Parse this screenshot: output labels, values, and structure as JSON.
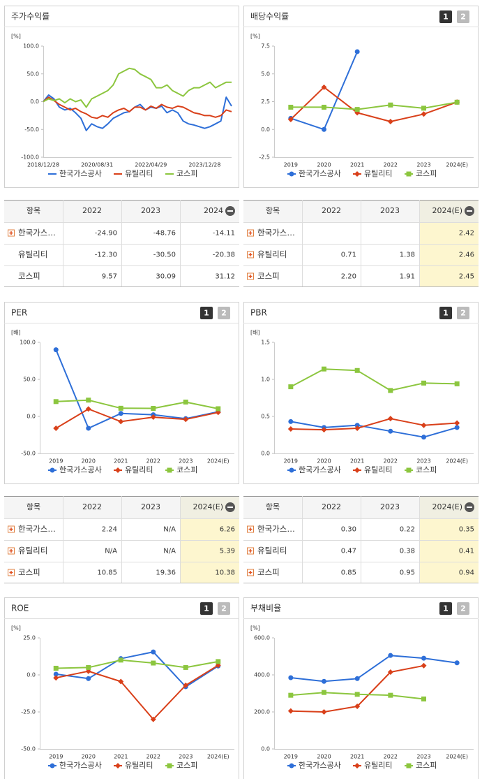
{
  "chart_data": [
    {
      "type": "line",
      "title": "주가수익률",
      "y_unit": "[%]",
      "categories": [
        "2018/12/28",
        null,
        null,
        null,
        null,
        null,
        null,
        null,
        null,
        null,
        "2020/08/31",
        null,
        null,
        null,
        null,
        null,
        null,
        null,
        null,
        null,
        "2022/04/29",
        null,
        null,
        null,
        null,
        null,
        null,
        null,
        null,
        null,
        "2023/12/28",
        null,
        null,
        null,
        null,
        null
      ],
      "series": [
        {
          "name": "한국가스공사",
          "color": "#2e6fd8",
          "values": [
            0,
            12,
            5,
            -10,
            -15,
            -12,
            -20,
            -30,
            -52,
            -40,
            -45,
            -48,
            -40,
            -30,
            -25,
            -20,
            -18,
            -10,
            -5,
            -15,
            -10,
            -12,
            -8,
            -20,
            -15,
            -20,
            -35,
            -40,
            -42,
            -45,
            -48,
            -45,
            -40,
            -35,
            8,
            -8
          ]
        },
        {
          "name": "유틸리티",
          "color": "#d9401a",
          "values": [
            0,
            8,
            2,
            -5,
            -10,
            -15,
            -12,
            -18,
            -22,
            -28,
            -30,
            -25,
            -28,
            -20,
            -15,
            -12,
            -18,
            -10,
            -10,
            -15,
            -8,
            -12,
            -5,
            -10,
            -12,
            -8,
            -10,
            -15,
            -20,
            -22,
            -25,
            -25,
            -28,
            -25,
            -15,
            -18
          ]
        },
        {
          "name": "코스피",
          "color": "#8cc63f",
          "values": [
            0,
            5,
            2,
            5,
            -2,
            5,
            0,
            3,
            -10,
            5,
            10,
            15,
            20,
            30,
            50,
            55,
            60,
            58,
            50,
            45,
            40,
            25,
            25,
            30,
            20,
            15,
            10,
            20,
            25,
            25,
            30,
            35,
            25,
            30,
            35,
            35
          ]
        }
      ],
      "ylim": [
        -100,
        100
      ],
      "yticks": [
        {
          "value": 100,
          "label": "100.0"
        },
        {
          "value": 50,
          "label": "50.0"
        },
        {
          "value": 0,
          "label": "0.0"
        },
        {
          "value": -50,
          "label": "-50.0"
        },
        {
          "value": -100,
          "label": "-100.0"
        }
      ]
    },
    {
      "type": "line",
      "title": "배당수익률",
      "tabs": [
        "1",
        "2"
      ],
      "y_unit": "[%]",
      "categories": [
        "2019",
        "2020",
        "2021",
        "2022",
        "2023",
        "2024(E)"
      ],
      "series": [
        {
          "name": "한국가스공사",
          "color": "#2e6fd8",
          "marker": "circle",
          "values": [
            1.0,
            0.0,
            7.0,
            null,
            null,
            null
          ]
        },
        {
          "name": "유틸리티",
          "color": "#d9401a",
          "marker": "diamond",
          "values": [
            0.9,
            3.8,
            1.5,
            0.71,
            1.38,
            2.46
          ]
        },
        {
          "name": "코스피",
          "color": "#8cc63f",
          "marker": "square",
          "values": [
            2.0,
            2.0,
            1.8,
            2.2,
            1.91,
            2.45
          ]
        }
      ],
      "ylim": [
        -2.5,
        7.5
      ],
      "yticks": [
        7.5,
        {
          "value": 5,
          "label": "5.0"
        },
        2.5,
        {
          "value": 0,
          "label": "0.0"
        },
        -2.5
      ]
    },
    {
      "type": "line",
      "title": "PER",
      "tabs": [
        "1",
        "2"
      ],
      "y_unit": "[배]",
      "categories": [
        "2019",
        "2020",
        "2021",
        "2022",
        "2023",
        "2024(E)"
      ],
      "series": [
        {
          "name": "한국가스공사",
          "color": "#2e6fd8",
          "marker": "circle",
          "values": [
            90,
            -16,
            4,
            2.24,
            -3,
            6.26
          ]
        },
        {
          "name": "유틸리티",
          "color": "#d9401a",
          "marker": "diamond",
          "values": [
            -16,
            10,
            -7,
            -1,
            -4,
            5.39
          ]
        },
        {
          "name": "코스피",
          "color": "#8cc63f",
          "marker": "square",
          "values": [
            20,
            22,
            11,
            10.85,
            19.36,
            10.38
          ]
        }
      ],
      "ylim": [
        -50,
        100
      ],
      "yticks": [
        {
          "value": 100,
          "label": "100.0"
        },
        {
          "value": 50,
          "label": "50.0"
        },
        {
          "value": 0,
          "label": "0.0"
        },
        {
          "value": -50,
          "label": "-50.0"
        }
      ]
    },
    {
      "type": "line",
      "title": "PBR",
      "tabs": [
        "1",
        "2"
      ],
      "y_unit": "[배]",
      "categories": [
        "2019",
        "2020",
        "2021",
        "2022",
        "2023",
        "2024(E)"
      ],
      "series": [
        {
          "name": "한국가스공사",
          "color": "#2e6fd8",
          "marker": "circle",
          "values": [
            0.43,
            0.35,
            0.38,
            0.3,
            0.22,
            0.35
          ]
        },
        {
          "name": "유틸리티",
          "color": "#d9401a",
          "marker": "diamond",
          "values": [
            0.33,
            0.32,
            0.34,
            0.47,
            0.38,
            0.41
          ]
        },
        {
          "name": "코스피",
          "color": "#8cc63f",
          "marker": "square",
          "values": [
            0.9,
            1.14,
            1.12,
            0.85,
            0.95,
            0.94
          ]
        }
      ],
      "ylim": [
        0,
        1.5
      ],
      "yticks": [
        1.5,
        {
          "value": 1,
          "label": "1.0"
        },
        0.5,
        {
          "value": 0,
          "label": "0.0"
        }
      ]
    },
    {
      "type": "line",
      "title": "ROE",
      "tabs": [
        "1",
        "2"
      ],
      "y_unit": "[%]",
      "categories": [
        "2019",
        "2020",
        "2021",
        "2022",
        "2023",
        "2024(E)"
      ],
      "series": [
        {
          "name": "한국가스공사",
          "color": "#2e6fd8",
          "marker": "circle",
          "values": [
            0.5,
            -2.5,
            11,
            15.5,
            -8,
            6
          ]
        },
        {
          "name": "유틸리티",
          "color": "#d9401a",
          "marker": "diamond",
          "values": [
            -2,
            2.5,
            -4.5,
            -30,
            -7,
            6.5
          ]
        },
        {
          "name": "코스피",
          "color": "#8cc63f",
          "marker": "square",
          "values": [
            4.5,
            5,
            10,
            8,
            5,
            9
          ]
        }
      ],
      "ylim": [
        -50,
        25
      ],
      "yticks": [
        {
          "value": 25,
          "label": "25.0"
        },
        {
          "value": 0,
          "label": "0.0"
        },
        {
          "value": -25,
          "label": "-25.0"
        },
        {
          "value": -50,
          "label": "-50.0"
        }
      ]
    },
    {
      "type": "line",
      "title": "부채비율",
      "tabs": [
        "1",
        "2"
      ],
      "y_unit": "[%]",
      "categories": [
        "2019",
        "2020",
        "2021",
        "2022",
        "2023",
        "2024(E)"
      ],
      "series": [
        {
          "name": "한국가스공사",
          "color": "#2e6fd8",
          "marker": "circle",
          "values": [
            385,
            365,
            380,
            505,
            490,
            465
          ]
        },
        {
          "name": "유틸리티",
          "color": "#d9401a",
          "marker": "diamond",
          "values": [
            205,
            200,
            230,
            415,
            450,
            null
          ]
        },
        {
          "name": "코스피",
          "color": "#8cc63f",
          "marker": "square",
          "values": [
            290,
            305,
            295,
            290,
            270,
            null
          ]
        }
      ],
      "ylim": [
        0,
        600
      ],
      "yticks": [
        {
          "value": 600,
          "label": "600.0"
        },
        {
          "value": 400,
          "label": "400.0"
        },
        {
          "value": 200,
          "label": "200.0"
        },
        {
          "value": 0,
          "label": "0.0"
        }
      ]
    }
  ],
  "tables": [
    {
      "header": [
        "항목",
        "2022",
        "2023",
        "2024"
      ],
      "row_icons": [
        true,
        false,
        false
      ],
      "highlight_last_column": false,
      "rows": [
        [
          "한국가스…",
          "-24.90",
          "-48.76",
          "-14.11"
        ],
        [
          "유틸리티",
          "-12.30",
          "-30.50",
          "-20.38"
        ],
        [
          "코스피",
          "9.57",
          "30.09",
          "31.12"
        ]
      ]
    },
    {
      "header": [
        "항목",
        "2022",
        "2023",
        "2024(E)"
      ],
      "row_icons": [
        true,
        true,
        true
      ],
      "highlight_last_column": true,
      "rows": [
        [
          "한국가스…",
          null,
          null,
          "2.42"
        ],
        [
          "유틸리티",
          "0.71",
          "1.38",
          "2.46"
        ],
        [
          "코스피",
          "2.20",
          "1.91",
          "2.45"
        ]
      ]
    },
    {
      "header": [
        "항목",
        "2022",
        "2023",
        "2024(E)"
      ],
      "row_icons": [
        true,
        true,
        true
      ],
      "highlight_last_column": true,
      "rows": [
        [
          "한국가스…",
          "2.24",
          "N/A",
          "6.26"
        ],
        [
          "유틸리티",
          "N/A",
          "N/A",
          "5.39"
        ],
        [
          "코스피",
          "10.85",
          "19.36",
          "10.38"
        ]
      ]
    },
    {
      "header": [
        "항목",
        "2022",
        "2023",
        "2024(E)"
      ],
      "row_icons": [
        true,
        true,
        true
      ],
      "highlight_last_column": true,
      "rows": [
        [
          "한국가스…",
          "0.30",
          "0.22",
          "0.35"
        ],
        [
          "유틸리티",
          "0.47",
          "0.38",
          "0.41"
        ],
        [
          "코스피",
          "0.85",
          "0.95",
          "0.94"
        ]
      ]
    }
  ]
}
